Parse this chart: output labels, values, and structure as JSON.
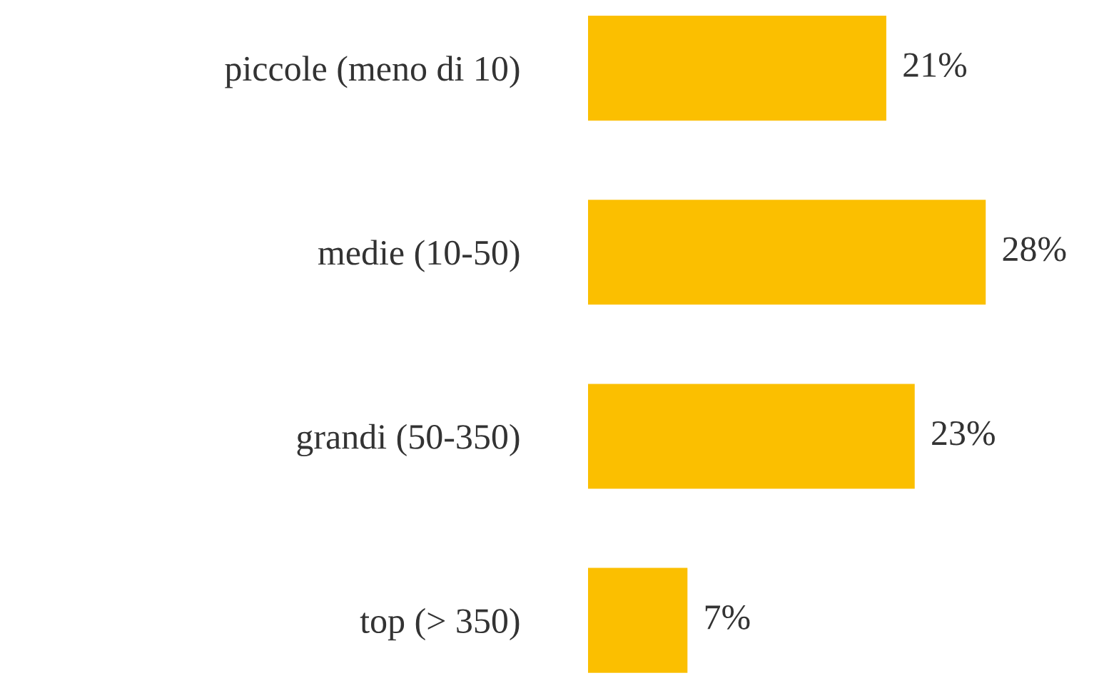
{
  "chart_data": {
    "type": "bar",
    "orientation": "horizontal",
    "categories": [
      "piccole (meno di 10)",
      "medie (10-50)",
      "grandi (50-350)",
      "top (> 350)"
    ],
    "values": [
      21,
      28,
      23,
      7
    ],
    "value_labels": [
      "21%",
      "28%",
      "23%",
      "7%"
    ],
    "color": "#fbbf00",
    "grid": false,
    "legend": false
  }
}
